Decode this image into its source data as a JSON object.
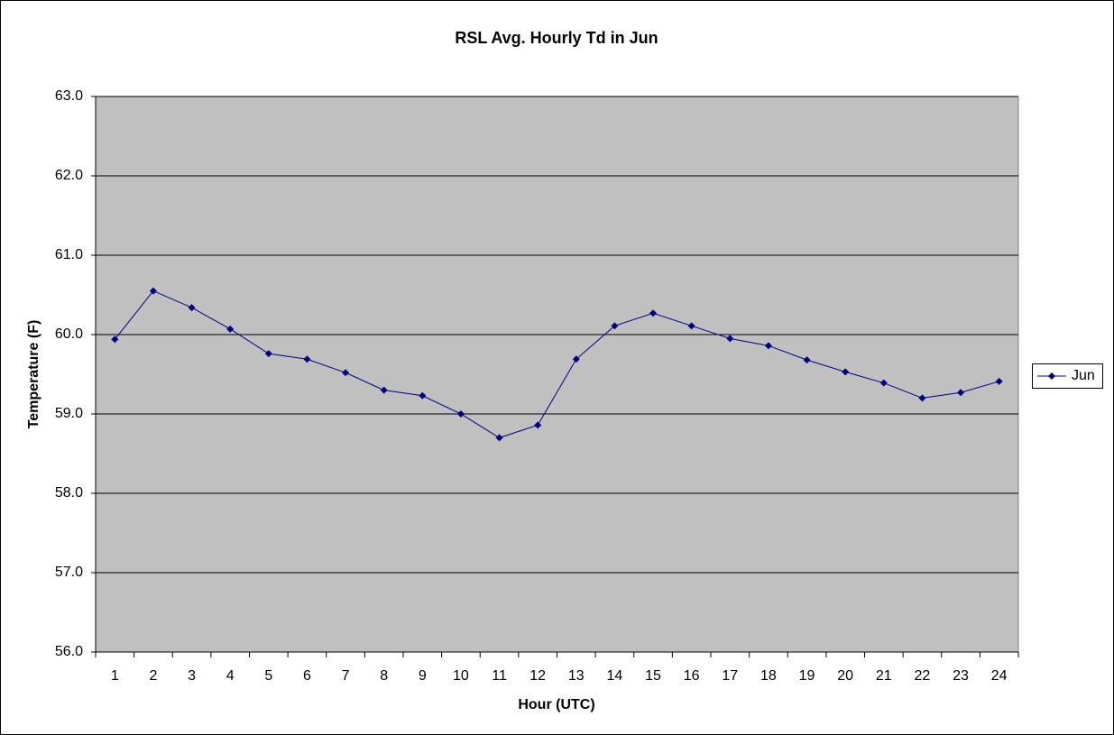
{
  "chart_data": {
    "type": "line",
    "title": "RSL Avg. Hourly Td in Jun",
    "x_label": "Hour (UTC)",
    "y_label": "Temperature (F)",
    "categories": [
      "1",
      "2",
      "3",
      "4",
      "5",
      "6",
      "7",
      "8",
      "9",
      "10",
      "11",
      "12",
      "13",
      "14",
      "15",
      "16",
      "17",
      "18",
      "19",
      "20",
      "21",
      "22",
      "23",
      "24"
    ],
    "series": [
      {
        "name": "Jun",
        "color": "#000080",
        "values": [
          59.94,
          60.55,
          60.34,
          60.07,
          59.76,
          59.69,
          59.52,
          59.3,
          59.23,
          59.0,
          58.7,
          58.86,
          59.69,
          60.11,
          60.27,
          60.11,
          59.95,
          59.86,
          59.68,
          59.53,
          59.39,
          59.2,
          59.27,
          59.41
        ]
      }
    ],
    "ylim": [
      56,
      63
    ],
    "yticks": [
      {
        "value": 56,
        "label": "56.0"
      },
      {
        "value": 57,
        "label": "57.0"
      },
      {
        "value": 58,
        "label": "58.0"
      },
      {
        "value": 59,
        "label": "59.0"
      },
      {
        "value": 60,
        "label": "60.0"
      },
      {
        "value": 61,
        "label": "61.0"
      },
      {
        "value": 62,
        "label": "62.0"
      },
      {
        "value": 63,
        "label": "63.0"
      }
    ],
    "grid": true,
    "legend": "right",
    "plot_background": "#c0c0c0"
  }
}
